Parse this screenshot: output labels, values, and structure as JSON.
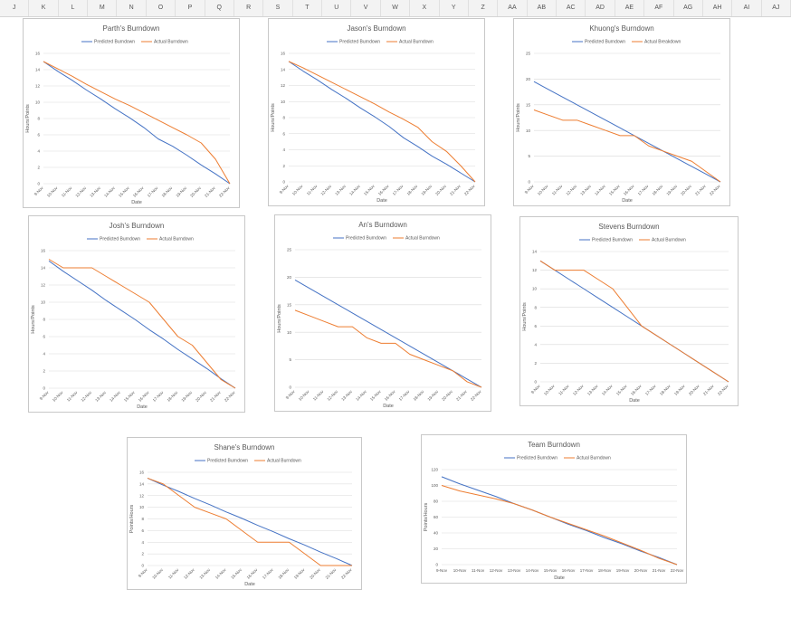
{
  "sheet": {
    "columns": [
      "J",
      "K",
      "L",
      "M",
      "N",
      "O",
      "P",
      "Q",
      "R",
      "S",
      "T",
      "U",
      "V",
      "W",
      "X",
      "Y",
      "Z",
      "AA",
      "AB",
      "AC",
      "AD",
      "AE",
      "AF",
      "AG",
      "AH",
      "AI",
      "AJ"
    ]
  },
  "colors": {
    "predicted": "#4472C4",
    "actual": "#ED7D31",
    "gridline": "#d9d9d9",
    "axis_text": "#595959"
  },
  "chart_data": [
    {
      "type": "line",
      "title": "Parth's Burndown",
      "xlabel": "Date",
      "ylabel": "Hours/Points",
      "ylim": [
        0,
        16
      ],
      "yticks": [
        0,
        2,
        4,
        6,
        8,
        10,
        12,
        14,
        16
      ],
      "legend_position": "top",
      "categories": [
        "9-Nov",
        "10-Nov",
        "11-Nov",
        "12-Nov",
        "13-Nov",
        "14-Nov",
        "15-Nov",
        "16-Nov",
        "17-Nov",
        "18-Nov",
        "19-Nov",
        "20-Nov",
        "21-Nov",
        "22-Nov"
      ],
      "series": [
        {
          "name": "Predicted Burndown",
          "values": [
            15,
            13.8,
            12.7,
            11.5,
            10.4,
            9.2,
            8.1,
            6.9,
            5.5,
            4.6,
            3.5,
            2.3,
            1.2,
            0
          ]
        },
        {
          "name": "Actual Burndown",
          "values": [
            15,
            14.1,
            13.2,
            12.2,
            11.3,
            10.4,
            9.6,
            8.7,
            7.8,
            6.9,
            6,
            5,
            3,
            0
          ]
        }
      ]
    },
    {
      "type": "line",
      "title": "Jason's Burndown",
      "xlabel": "Date",
      "ylabel": "Hours/Points",
      "ylim": [
        0,
        16
      ],
      "yticks": [
        0,
        2,
        4,
        6,
        8,
        10,
        12,
        14,
        16
      ],
      "legend_position": "top",
      "categories": [
        "9-Nov",
        "10-Nov",
        "11-Nov",
        "12-Nov",
        "13-Nov",
        "14-Nov",
        "15-Nov",
        "16-Nov",
        "17-Nov",
        "18-Nov",
        "19-Nov",
        "20-Nov",
        "21-Nov",
        "22-Nov"
      ],
      "series": [
        {
          "name": "Predicted Burndown",
          "values": [
            15,
            13.8,
            12.7,
            11.5,
            10.4,
            9.2,
            8.1,
            6.9,
            5.5,
            4.4,
            3.2,
            2.2,
            1.1,
            0
          ]
        },
        {
          "name": "Actual Burndown",
          "values": [
            15,
            14.2,
            13.3,
            12.4,
            11.5,
            10.6,
            9.7,
            8.7,
            7.8,
            6.8,
            5,
            3.8,
            2,
            0
          ]
        }
      ]
    },
    {
      "type": "line",
      "title": "Khuong's Burndown",
      "xlabel": "Date",
      "ylabel": "Hours/Points",
      "ylim": [
        0,
        25
      ],
      "yticks": [
        0,
        5,
        10,
        15,
        20,
        25
      ],
      "legend_position": "top",
      "categories": [
        "9-Nov",
        "10-Nov",
        "11-Nov",
        "12-Nov",
        "13-Nov",
        "14-Nov",
        "15-Nov",
        "16-Nov",
        "17-Nov",
        "18-Nov",
        "19-Nov",
        "20-Nov",
        "21-Nov",
        "22-Nov"
      ],
      "series": [
        {
          "name": "Predicted Burndown",
          "values": [
            19.5,
            18,
            16.5,
            15,
            13.5,
            12,
            10.5,
            9,
            7.5,
            6,
            4.5,
            3,
            1.5,
            0
          ]
        },
        {
          "name": "Actual Breakdown",
          "values": [
            14,
            13,
            12,
            12,
            11,
            10,
            9,
            9,
            7,
            6,
            5,
            4,
            2,
            0
          ]
        }
      ]
    },
    {
      "type": "line",
      "title": "Josh's Burndown",
      "xlabel": "Date",
      "ylabel": "Hours/Points",
      "ylim": [
        0,
        16
      ],
      "yticks": [
        0,
        2,
        4,
        6,
        8,
        10,
        12,
        14,
        16
      ],
      "legend_position": "top",
      "categories": [
        "9-Nov",
        "10-Nov",
        "11-Nov",
        "12-Nov",
        "13-Nov",
        "14-Nov",
        "15-Nov",
        "16-Nov",
        "17-Nov",
        "18-Nov",
        "19-Nov",
        "20-Nov",
        "21-Nov",
        "22-Nov"
      ],
      "series": [
        {
          "name": "Predicted Burndown",
          "values": [
            14.8,
            13.6,
            12.5,
            11.4,
            10.2,
            9.1,
            8,
            6.8,
            5.7,
            4.5,
            3.4,
            2.3,
            1.1,
            0
          ]
        },
        {
          "name": "Actual Burndown",
          "values": [
            15,
            14,
            14,
            14,
            13,
            12,
            11,
            10,
            8,
            6,
            5,
            3,
            1,
            0
          ]
        }
      ]
    },
    {
      "type": "line",
      "title": "An's Burndown",
      "xlabel": "Date",
      "ylabel": "Hours/Points",
      "ylim": [
        0,
        25
      ],
      "yticks": [
        0,
        5,
        10,
        15,
        20,
        25
      ],
      "legend_position": "top",
      "categories": [
        "9-Nov",
        "10-Nov",
        "11-Nov",
        "12-Nov",
        "13-Nov",
        "14-Nov",
        "15-Nov",
        "16-Nov",
        "17-Nov",
        "18-Nov",
        "19-Nov",
        "20-Nov",
        "21-Nov",
        "22-Nov"
      ],
      "series": [
        {
          "name": "Predicted Burndown",
          "values": [
            19.5,
            18,
            16.5,
            15,
            13.5,
            12,
            10.5,
            9,
            7.5,
            6,
            4.5,
            3,
            1.5,
            0
          ]
        },
        {
          "name": "Actual Burndown",
          "values": [
            14,
            13,
            12,
            11,
            11,
            9,
            8,
            8,
            6,
            5,
            4,
            3,
            1,
            0
          ]
        }
      ]
    },
    {
      "type": "line",
      "title": "Stevens Burndown",
      "xlabel": "Date",
      "ylabel": "Hours/Points",
      "ylim": [
        0,
        14
      ],
      "yticks": [
        0,
        2,
        4,
        6,
        8,
        10,
        12,
        14
      ],
      "legend_position": "top",
      "categories": [
        "9-Nov",
        "10-Nov",
        "11-Nov",
        "12-Nov",
        "13-Nov",
        "14-Nov",
        "15-Nov",
        "16-Nov",
        "17-Nov",
        "18-Nov",
        "19-Nov",
        "20-Nov",
        "21-Nov",
        "22-Nov"
      ],
      "series": [
        {
          "name": "Predicted Burndown",
          "values": [
            13,
            12,
            11,
            10,
            9,
            8,
            7,
            6,
            5,
            4,
            3,
            2,
            1,
            0
          ]
        },
        {
          "name": "Actual Burndown",
          "values": [
            13,
            12,
            12,
            12,
            11,
            10,
            8,
            6,
            5,
            4,
            3,
            2,
            1,
            0
          ]
        }
      ]
    },
    {
      "type": "line",
      "title": "Shane's Burndown",
      "xlabel": "Date",
      "ylabel": "Points/Hours",
      "ylim": [
        0,
        16
      ],
      "yticks": [
        0,
        2,
        4,
        6,
        8,
        10,
        12,
        14,
        16
      ],
      "legend_position": "top",
      "categories": [
        "9-Nov",
        "10-Nov",
        "11-Nov",
        "12-Nov",
        "13-Nov",
        "14-Nov",
        "15-Nov",
        "16-Nov",
        "17-Nov",
        "18-Nov",
        "19-Nov",
        "20-Nov",
        "21-Nov",
        "22-Nov"
      ],
      "series": [
        {
          "name": "Predicted Burndown",
          "values": [
            15,
            13.8,
            12.7,
            11.5,
            10.4,
            9.2,
            8.1,
            6.9,
            5.8,
            4.6,
            3.5,
            2.3,
            1.2,
            0
          ]
        },
        {
          "name": "Actual Burndown",
          "values": [
            15,
            14,
            12,
            10,
            9,
            8,
            6,
            4,
            4,
            4,
            2,
            0,
            0,
            0
          ]
        }
      ]
    },
    {
      "type": "line",
      "title": "Team Burndown",
      "xlabel": "Date",
      "ylabel": "Points/Hours",
      "ylim": [
        0,
        120
      ],
      "yticks": [
        0,
        20,
        40,
        60,
        80,
        100,
        120
      ],
      "legend_position": "top",
      "categories": [
        "9-Nov",
        "10-Nov",
        "11-Nov",
        "12-Nov",
        "13-Nov",
        "14-Nov",
        "15-Nov",
        "16-Nov",
        "17-Nov",
        "18-Nov",
        "19-Nov",
        "20-Nov",
        "21-Nov",
        "22-Nov"
      ],
      "series": [
        {
          "name": "Predicted Burndown",
          "values": [
            111,
            102,
            94,
            86,
            77,
            69,
            60,
            51,
            43,
            34,
            26,
            17,
            9,
            0
          ]
        },
        {
          "name": "Actual Burndown",
          "values": [
            100,
            93,
            88,
            83,
            77,
            69,
            60,
            52,
            44,
            36,
            27,
            18,
            8,
            0
          ]
        }
      ]
    }
  ]
}
